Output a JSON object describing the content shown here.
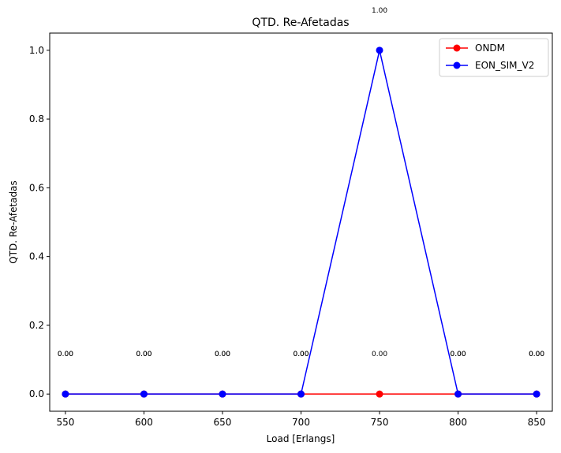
{
  "chart_data": {
    "type": "line",
    "title": "QTD. Re-Afetadas",
    "xlabel": "Load [Erlangs]",
    "ylabel": "QTD. Re-Afetadas",
    "x": [
      550,
      600,
      650,
      700,
      750,
      800,
      850
    ],
    "xticks": [
      550,
      600,
      650,
      700,
      750,
      800,
      850
    ],
    "yticks": [
      0.0,
      0.2,
      0.4,
      0.6,
      0.8,
      1.0
    ],
    "xlim": [
      540,
      860
    ],
    "ylim": [
      -0.05,
      1.05
    ],
    "grid": false,
    "legend": "top-right",
    "series": [
      {
        "name": "ONDM",
        "color": "#ff0000",
        "values": [
          0,
          0,
          0,
          0,
          0,
          0,
          0
        ],
        "labels": [
          "0.00",
          "0.00",
          "0.00",
          "0.00",
          "0.00",
          "0.00",
          "0.00"
        ]
      },
      {
        "name": "EON_SIM_V2",
        "color": "#0000ff",
        "values": [
          0,
          0,
          0,
          0,
          1,
          0,
          0
        ],
        "labels": [
          "0.00",
          "0.00",
          "0.00",
          "0.00",
          "1.00",
          "0.00",
          "0.00"
        ]
      }
    ]
  }
}
